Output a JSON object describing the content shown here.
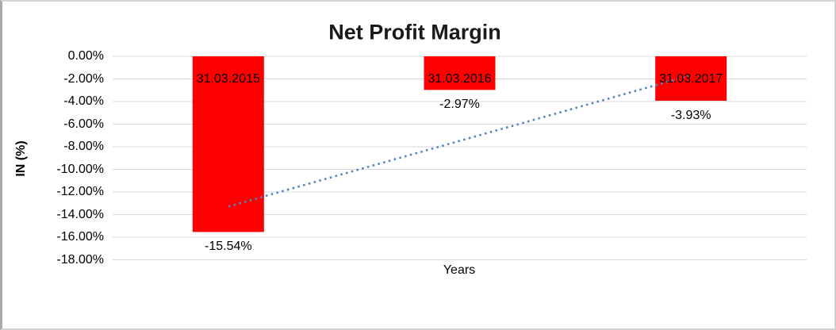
{
  "window": {
    "background": "#FFFFFF",
    "outer_border_color": "#D2D2D2",
    "left_border_color": "#A8A8A8"
  },
  "chart_data": {
    "type": "bar",
    "title": "Net Profit Margin",
    "xlabel": "Years",
    "ylabel": "IN (%)",
    "categories": [
      "31.03.2015",
      "31.03.2016",
      "31.03.2017"
    ],
    "values": [
      -15.54,
      -2.97,
      -3.93
    ],
    "value_labels": [
      "-15.54%",
      "-2.97%",
      "-3.93%"
    ],
    "bar_color": "#FF0000",
    "ylim": [
      0,
      -18
    ],
    "y_tick_labels": [
      "0.00%",
      "-2.00%",
      "-4.00%",
      "-6.00%",
      "-8.00%",
      "-10.00%",
      "-12.00%",
      "-14.00%",
      "-16.00%",
      "-18.00%"
    ],
    "gridlines": true,
    "gridline_color": "#D9D9D9",
    "legend": "none",
    "trendline": {
      "type": "linear",
      "style": "dotted",
      "color": "#5585C5",
      "start_value": -13.29,
      "end_value": -1.67
    }
  }
}
